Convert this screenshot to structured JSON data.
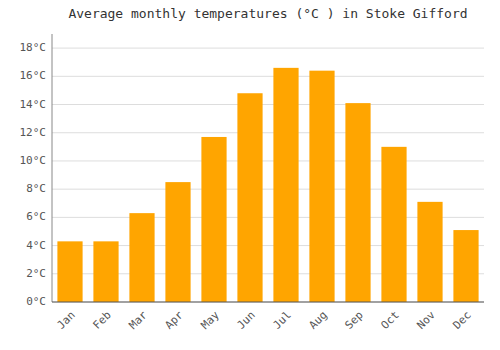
{
  "chart_data": {
    "type": "bar",
    "title": "Average monthly temperatures (°C ) in Stoke Gifford",
    "categories": [
      "Jan",
      "Feb",
      "Mar",
      "Apr",
      "May",
      "Jun",
      "Jul",
      "Aug",
      "Sep",
      "Oct",
      "Nov",
      "Dec"
    ],
    "values": [
      4.3,
      4.3,
      6.3,
      8.5,
      11.7,
      14.8,
      16.6,
      16.4,
      14.1,
      11.0,
      7.1,
      5.1
    ],
    "color": "#FFA500",
    "ylim": [
      0,
      19
    ],
    "yticks": [
      {
        "value": 0,
        "label": "0°C"
      },
      {
        "value": 2,
        "label": "2°C"
      },
      {
        "value": 4,
        "label": "4°C"
      },
      {
        "value": 6,
        "label": "6°C"
      },
      {
        "value": 8,
        "label": "8°C"
      },
      {
        "value": 10,
        "label": "10°C"
      },
      {
        "value": 12,
        "label": "12°C"
      },
      {
        "value": 14,
        "label": "14°C"
      },
      {
        "value": 16,
        "label": "16°C"
      },
      {
        "value": 18,
        "label": "18°C"
      }
    ],
    "grid": true
  }
}
